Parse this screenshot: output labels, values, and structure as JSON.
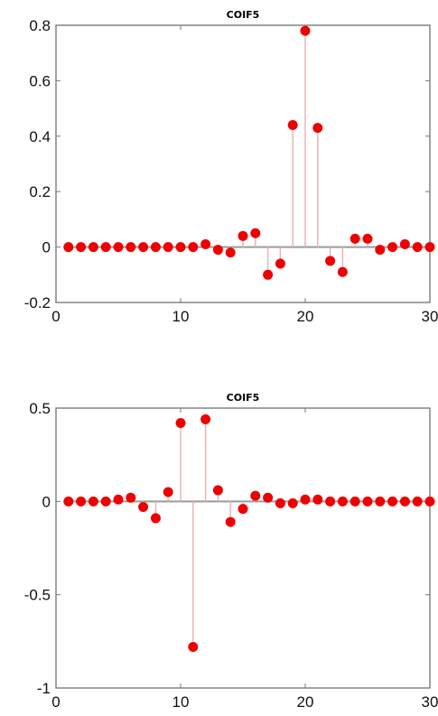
{
  "chart_data": [
    {
      "type": "stem",
      "title": "COIF5",
      "xlabel": "",
      "ylabel": "",
      "xlim": [
        0,
        30
      ],
      "ylim": [
        -0.2,
        0.8
      ],
      "xticks": [
        "0",
        "10",
        "20",
        "30"
      ],
      "yticks": [
        "-0.2",
        "0",
        "0.2",
        "0.4",
        "0.6",
        "0.8"
      ],
      "x": [
        1,
        2,
        3,
        4,
        5,
        6,
        7,
        8,
        9,
        10,
        11,
        12,
        13,
        14,
        15,
        16,
        17,
        18,
        19,
        20,
        21,
        22,
        23,
        24,
        25,
        26,
        27,
        28,
        29,
        30
      ],
      "values": [
        0,
        0,
        0,
        0,
        0,
        0,
        0,
        0,
        0,
        0,
        0,
        0.01,
        -0.01,
        -0.02,
        0.04,
        0.05,
        -0.1,
        -0.06,
        0.44,
        0.78,
        0.43,
        -0.05,
        -0.09,
        0.03,
        0.03,
        -0.01,
        0,
        0.01,
        0,
        0
      ],
      "marker_color": "#ee0000",
      "stem_color": "#e8b4b4",
      "grid": false
    },
    {
      "type": "stem",
      "title": "COIF5",
      "xlabel": "",
      "ylabel": "",
      "xlim": [
        0,
        30
      ],
      "ylim": [
        -1,
        0.5
      ],
      "xticks": [
        "0",
        "10",
        "20",
        "30"
      ],
      "yticks": [
        "-1",
        "-0.5",
        "0",
        "0.5"
      ],
      "x": [
        1,
        2,
        3,
        4,
        5,
        6,
        7,
        8,
        9,
        10,
        11,
        12,
        13,
        14,
        15,
        16,
        17,
        18,
        19,
        20,
        21,
        22,
        23,
        24,
        25,
        26,
        27,
        28,
        29,
        30
      ],
      "values": [
        0,
        0,
        0,
        0,
        0.01,
        0.02,
        -0.03,
        -0.09,
        0.05,
        0.42,
        -0.78,
        0.44,
        0.06,
        -0.11,
        -0.04,
        0.03,
        0.02,
        -0.01,
        -0.01,
        0.01,
        0.01,
        0,
        0,
        0,
        0,
        0,
        0,
        0,
        0,
        0
      ],
      "marker_color": "#ee0000",
      "stem_color": "#e8b4b4",
      "grid": false
    }
  ]
}
